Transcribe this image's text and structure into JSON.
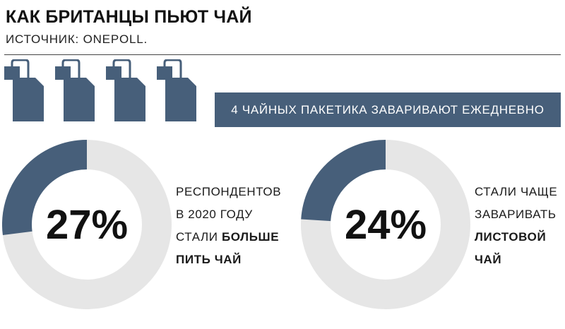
{
  "title": "КАК БРИТАНЦЫ ПЬЮТ ЧАЙ",
  "source": "ИСТОЧНИК: ONEPOLL.",
  "banner": "4 ЧАЙНЫХ ПАКЕТИКА ЗАВАРИВАЮТ ЕЖЕДНЕВНО",
  "colors": {
    "accent": "#475f7a",
    "ring": "#e6e6e6"
  },
  "icons": [
    "tea-bag-icon",
    "tea-bag-icon",
    "tea-bag-icon",
    "tea-bag-icon"
  ],
  "chart_data": [
    {
      "type": "pie",
      "style": "donut",
      "value_label": "27%",
      "values": [
        27,
        73
      ],
      "caption": {
        "line1": "РЕСПОНДЕНТОВ",
        "line2": "В 2020 ГОДУ",
        "line3_pre": "СТАЛИ ",
        "line3_bold": "БОЛЬШЕ",
        "line4_bold": "ПИТЬ ЧАЙ"
      }
    },
    {
      "type": "pie",
      "style": "donut",
      "value_label": "24%",
      "values": [
        24,
        76
      ],
      "caption": {
        "line1": "СТАЛИ ЧАЩЕ",
        "line2": "ЗАВАРИВАТЬ",
        "line3_bold": "ЛИСТОВОЙ",
        "line4_bold": "ЧАЙ"
      }
    }
  ]
}
